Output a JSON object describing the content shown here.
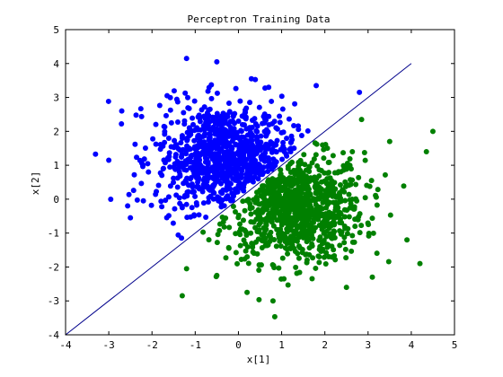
{
  "chart_data": {
    "type": "scatter",
    "title": "Perceptron Training Data",
    "xlabel": "x[1]",
    "ylabel": "x[2]",
    "xlim": [
      -4,
      5
    ],
    "ylim": [
      -4,
      5
    ],
    "xticks": [
      -4,
      -3,
      -2,
      -1,
      0,
      1,
      2,
      3,
      4,
      5
    ],
    "yticks": [
      -4,
      -3,
      -2,
      -1,
      0,
      1,
      2,
      3,
      4,
      5
    ],
    "grid": false,
    "legend": "none",
    "series": [
      {
        "color": "#0000ff",
        "marker": "circle",
        "points_shown_approx": 1000,
        "center": [
          -0.3,
          1.2
        ],
        "spread": [
          0.8,
          0.8
        ],
        "outliers": [
          [
            -3.0,
            1.15
          ],
          [
            -2.7,
            2.6
          ],
          [
            -2.5,
            -0.55
          ],
          [
            -1.2,
            4.15
          ],
          [
            -0.5,
            4.05
          ],
          [
            0.3,
            3.55
          ],
          [
            0.7,
            3.3
          ],
          [
            1.8,
            3.35
          ],
          [
            2.8,
            3.15
          ],
          [
            -1.65,
            3.05
          ],
          [
            -2.2,
            -0.05
          ],
          [
            -1.3,
            -0.25
          ]
        ]
      },
      {
        "color": "#008000",
        "marker": "circle",
        "points_shown_approx": 1000,
        "center": [
          1.3,
          -0.25
        ],
        "spread": [
          0.8,
          0.8
        ],
        "outliers": [
          [
            -1.3,
            -2.85
          ],
          [
            0.2,
            -2.75
          ],
          [
            0.8,
            -3.0
          ],
          [
            2.5,
            -2.6
          ],
          [
            4.2,
            -1.9
          ],
          [
            4.5,
            2.0
          ],
          [
            3.5,
            1.7
          ],
          [
            2.85,
            2.35
          ],
          [
            -1.2,
            -2.05
          ],
          [
            -0.5,
            -2.25
          ],
          [
            3.9,
            -1.2
          ],
          [
            4.35,
            1.4
          ]
        ]
      }
    ],
    "decision_boundary": {
      "color": "#00008b",
      "x": [
        -4,
        4
      ],
      "y": [
        -4,
        4
      ]
    }
  }
}
